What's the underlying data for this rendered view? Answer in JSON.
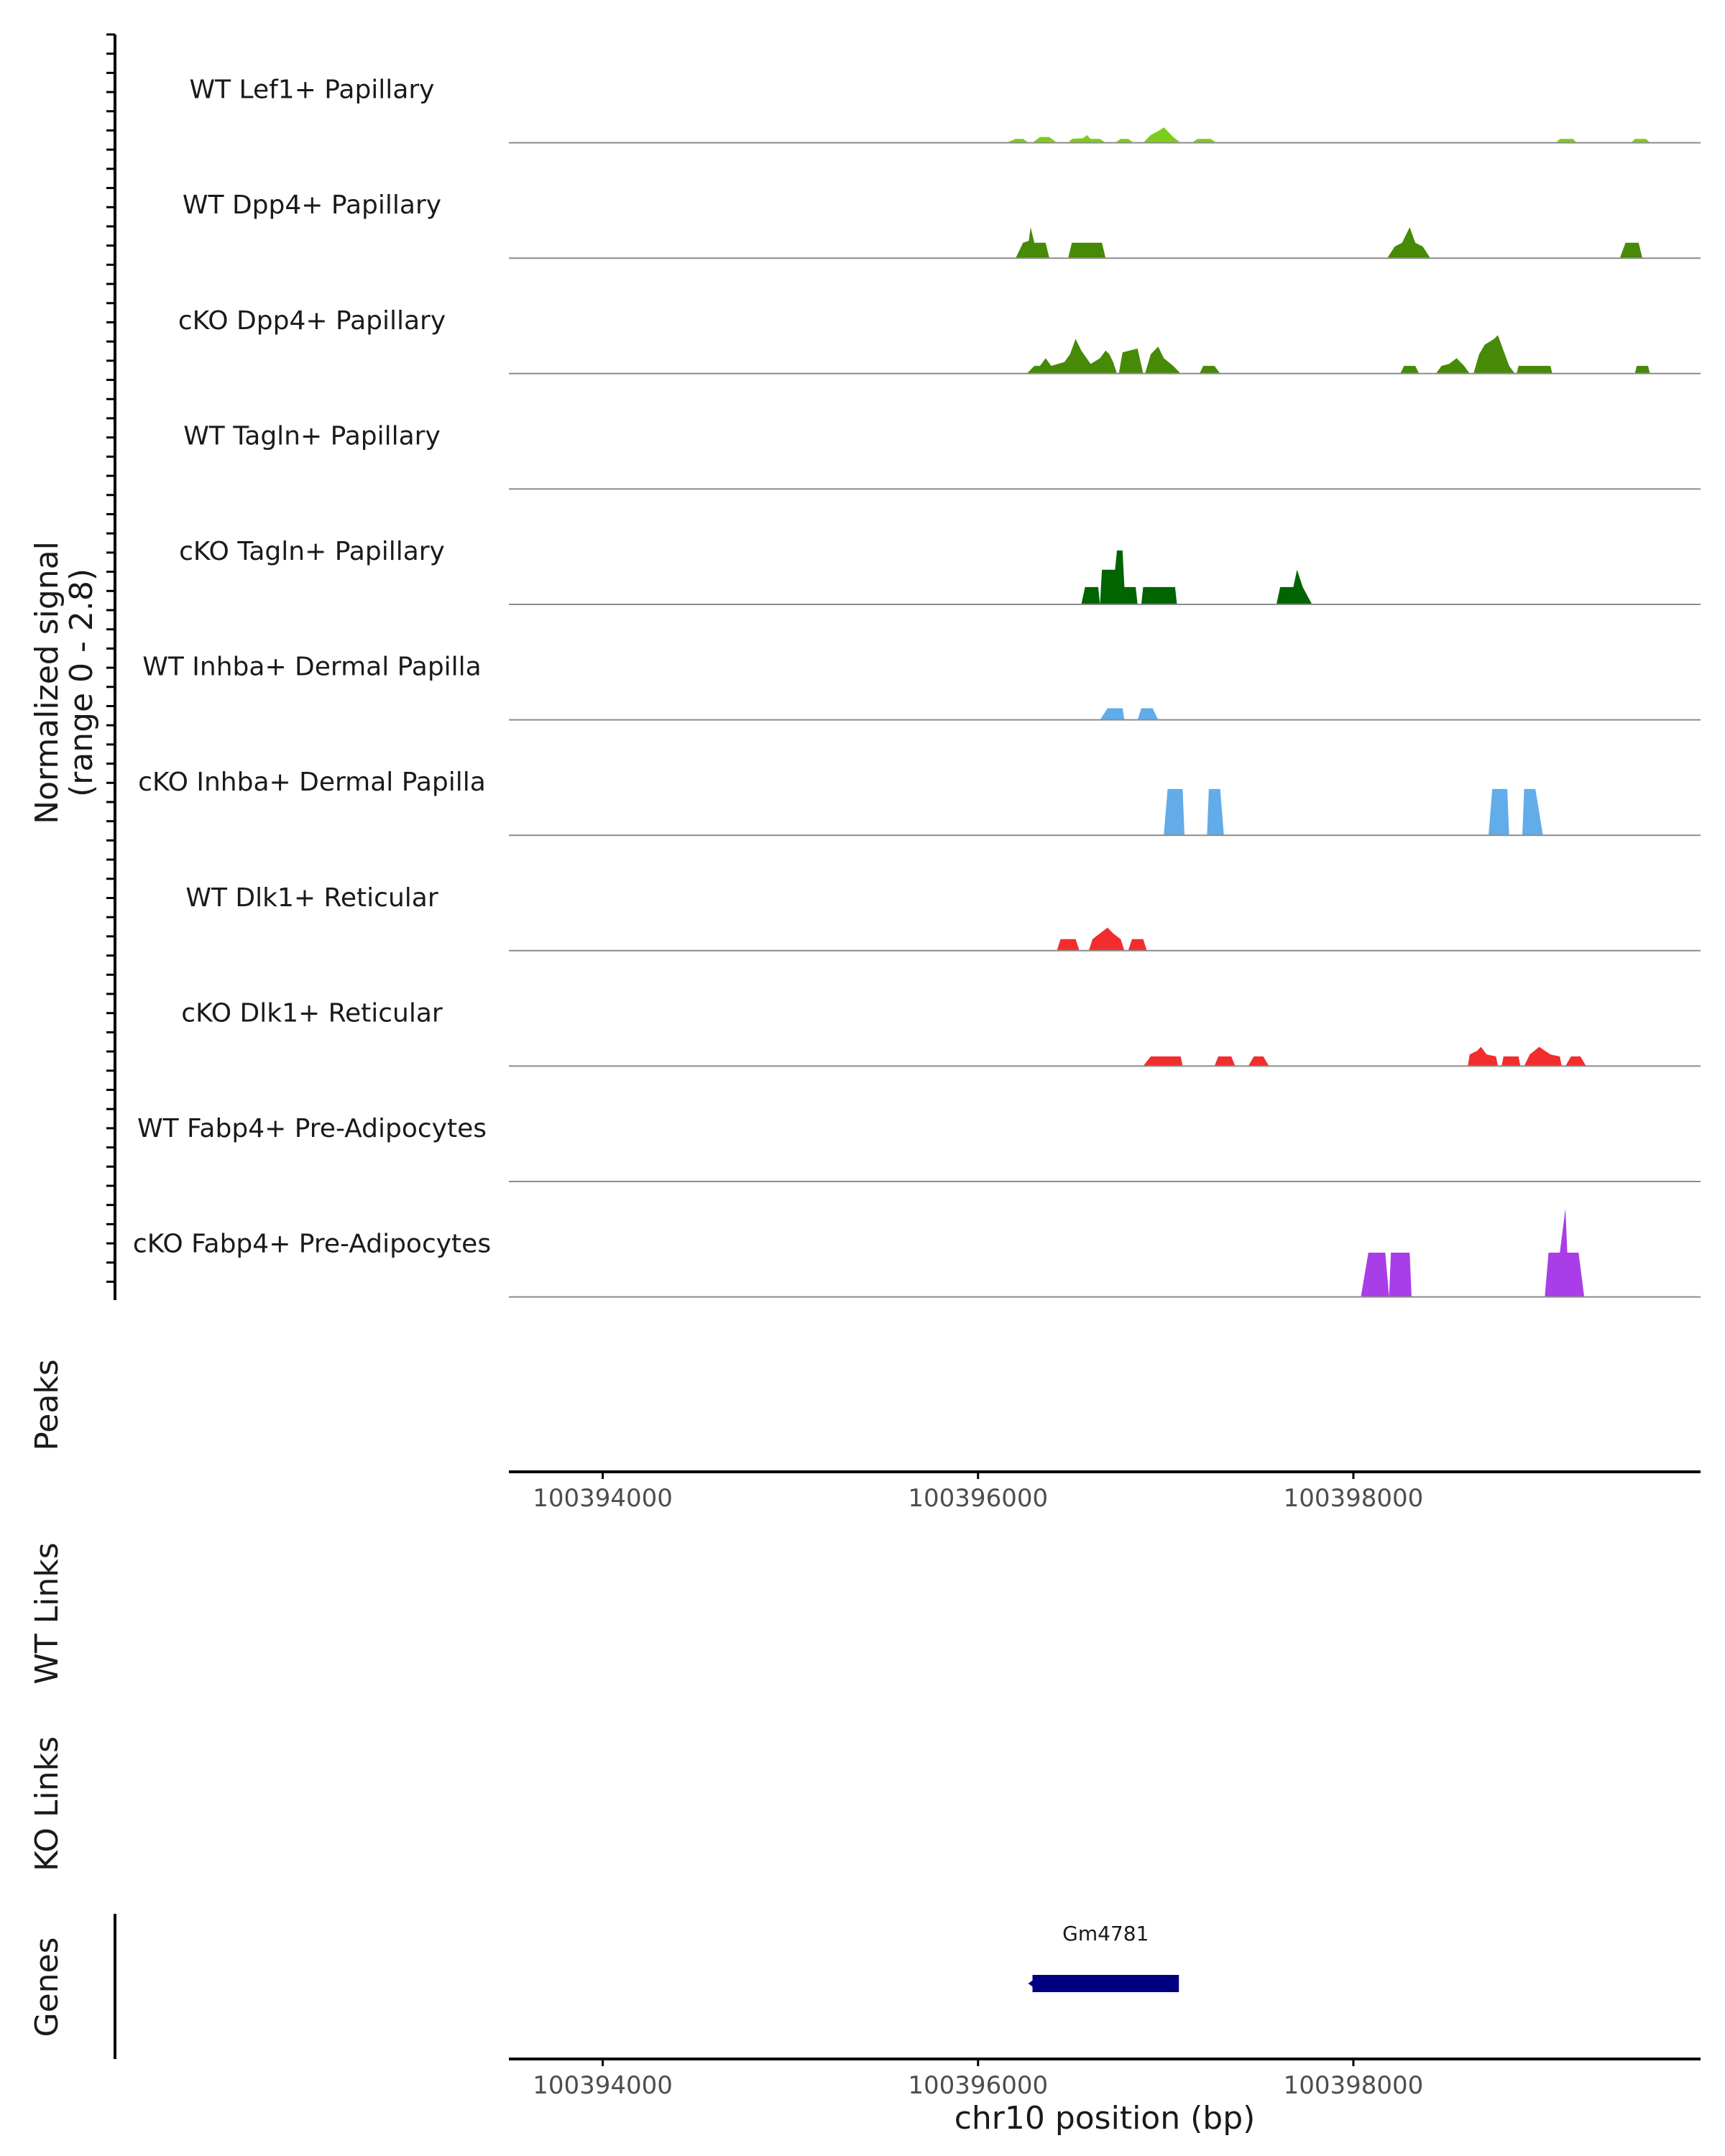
{
  "chart_data": {
    "type": "area",
    "title": "",
    "xlabel": "chr10 position (bp)",
    "xlim": [
      100393500,
      100399850
    ],
    "xticks": [
      100394000,
      100396000,
      100398000
    ],
    "xtick_labels": [
      "100394000",
      "100396000",
      "100398000"
    ],
    "ylabel_line1": "Normalized signal",
    "ylabel_line2": "(range 0 - 2.8)",
    "ylim": [
      0,
      2.8
    ],
    "side_labels": {
      "peaks": "Peaks",
      "wt_links": "WT Links",
      "ko_links": "KO Links",
      "genes": "Genes"
    },
    "colors": {
      "lef1": "#7ccd1b",
      "dpp4": "#468a08",
      "tagln": "#006400",
      "inhba": "#62acea",
      "dlk1": "#f22d2d",
      "fabp4": "#a93de8",
      "gene": "#000080",
      "baseline": "#8c8c8c",
      "axis": "#000000"
    },
    "series": [
      {
        "name": "WT Lef1+ Papillary",
        "color_key": "lef1",
        "segments": [
          [
            [
              100396150,
              0
            ],
            [
              100396200,
              0.1
            ],
            [
              100396240,
              0.1
            ],
            [
              100396270,
              0
            ]
          ],
          [
            [
              100396290,
              0
            ],
            [
              100396330,
              0.15
            ],
            [
              100396380,
              0.15
            ],
            [
              100396420,
              0
            ]
          ],
          [
            [
              100396480,
              0
            ],
            [
              100396500,
              0.1
            ],
            [
              100396560,
              0.12
            ],
            [
              100396580,
              0.2
            ],
            [
              100396600,
              0.1
            ],
            [
              100396650,
              0.1
            ],
            [
              100396680,
              0
            ]
          ],
          [
            [
              100396730,
              0
            ],
            [
              100396760,
              0.1
            ],
            [
              100396800,
              0.1
            ],
            [
              100396830,
              0
            ]
          ],
          [
            [
              100396880,
              0
            ],
            [
              100396920,
              0.2
            ],
            [
              100396960,
              0.3
            ],
            [
              100396990,
              0.4
            ],
            [
              100397010,
              0.3
            ],
            [
              100397040,
              0.15
            ],
            [
              100397080,
              0
            ]
          ],
          [
            [
              100397140,
              0
            ],
            [
              100397170,
              0.1
            ],
            [
              100397240,
              0.1
            ],
            [
              100397270,
              0
            ]
          ],
          [
            [
              100399080,
              0
            ],
            [
              100399100,
              0.1
            ],
            [
              100399170,
              0.1
            ],
            [
              100399190,
              0
            ]
          ],
          [
            [
              100399480,
              0
            ],
            [
              100399500,
              0.1
            ],
            [
              100399560,
              0.1
            ],
            [
              100399580,
              0
            ]
          ]
        ]
      },
      {
        "name": "WT Dpp4+ Papillary",
        "color_key": "dpp4",
        "segments": [
          [
            [
              100396200,
              0
            ],
            [
              100396240,
              0.4
            ],
            [
              100396270,
              0.45
            ],
            [
              100396280,
              0.8
            ],
            [
              100396300,
              0.4
            ],
            [
              100396360,
              0.4
            ],
            [
              100396380,
              0
            ]
          ],
          [
            [
              100396480,
              0
            ],
            [
              100396500,
              0.4
            ],
            [
              100396660,
              0.4
            ],
            [
              100396680,
              0
            ]
          ],
          [
            [
              100398180,
              0
            ],
            [
              100398220,
              0.3
            ],
            [
              100398260,
              0.4
            ],
            [
              100398300,
              0.8
            ],
            [
              100398330,
              0.4
            ],
            [
              100398370,
              0.3
            ],
            [
              100398410,
              0
            ]
          ],
          [
            [
              100399420,
              0
            ],
            [
              100399450,
              0.4
            ],
            [
              100399520,
              0.4
            ],
            [
              100399540,
              0
            ]
          ]
        ]
      },
      {
        "name": "cKO Dpp4+ Papillary",
        "color_key": "dpp4",
        "segments": [
          [
            [
              100396260,
              0
            ],
            [
              100396300,
              0.2
            ],
            [
              100396330,
              0.2
            ],
            [
              100396360,
              0.4
            ],
            [
              100396390,
              0.2
            ],
            [
              100396460,
              0.3
            ],
            [
              100396490,
              0.5
            ],
            [
              100396520,
              0.9
            ],
            [
              100396550,
              0.6
            ],
            [
              100396600,
              0.25
            ],
            [
              100396650,
              0.4
            ],
            [
              100396680,
              0.6
            ],
            [
              100396700,
              0.5
            ],
            [
              100396720,
              0.3
            ],
            [
              100396740,
              0
            ]
          ],
          [
            [
              100396750,
              0
            ],
            [
              100396770,
              0.55
            ],
            [
              100396850,
              0.65
            ],
            [
              100396880,
              0
            ]
          ],
          [
            [
              100396890,
              0
            ],
            [
              100396920,
              0.5
            ],
            [
              100396960,
              0.7
            ],
            [
              100396990,
              0.4
            ],
            [
              100397040,
              0.2
            ],
            [
              100397080,
              0
            ]
          ],
          [
            [
              100397180,
              0
            ],
            [
              100397200,
              0.2
            ],
            [
              100397260,
              0.2
            ],
            [
              100397290,
              0
            ]
          ],
          [
            [
              100398250,
              0
            ],
            [
              100398270,
              0.2
            ],
            [
              100398330,
              0.2
            ],
            [
              100398350,
              0
            ]
          ],
          [
            [
              100398440,
              0
            ],
            [
              100398470,
              0.2
            ],
            [
              100398510,
              0.25
            ],
            [
              100398550,
              0.4
            ],
            [
              100398590,
              0.2
            ],
            [
              100398620,
              0
            ]
          ],
          [
            [
              100398640,
              0
            ],
            [
              100398670,
              0.5
            ],
            [
              100398700,
              0.75
            ],
            [
              100398750,
              0.9
            ],
            [
              100398770,
              1.0
            ],
            [
              100398800,
              0.6
            ],
            [
              100398830,
              0.2
            ],
            [
              100398860,
              0
            ]
          ],
          [
            [
              100398870,
              0
            ],
            [
              100398880,
              0.2
            ],
            [
              100399050,
              0.2
            ],
            [
              100399060,
              0
            ]
          ],
          [
            [
              100399500,
              0
            ],
            [
              100399510,
              0.2
            ],
            [
              100399570,
              0.2
            ],
            [
              100399580,
              0
            ]
          ]
        ]
      },
      {
        "name": "WT Tagln+ Papillary",
        "color_key": "tagln",
        "segments": []
      },
      {
        "name": "cKO Tagln+ Papillary",
        "color_key": "tagln",
        "segments": [
          [
            [
              100396550,
              0
            ],
            [
              100396570,
              0.45
            ],
            [
              100396640,
              0.45
            ],
            [
              100396650,
              0
            ]
          ],
          [
            [
              100396650,
              0
            ],
            [
              100396660,
              0.9
            ],
            [
              100396730,
              0.9
            ],
            [
              100396740,
              1.4
            ],
            [
              100396770,
              1.4
            ],
            [
              100396780,
              0.45
            ],
            [
              100396840,
              0.45
            ],
            [
              100396850,
              0
            ]
          ],
          [
            [
              100396870,
              0
            ],
            [
              100396880,
              0.45
            ],
            [
              100397050,
              0.45
            ],
            [
              100397060,
              0
            ]
          ],
          [
            [
              100397590,
              0
            ],
            [
              100397610,
              0.45
            ],
            [
              100397680,
              0.45
            ],
            [
              100397700,
              0.9
            ],
            [
              100397730,
              0.45
            ],
            [
              100397780,
              0
            ]
          ]
        ]
      },
      {
        "name": "WT Inhba+ Dermal Papilla",
        "color_key": "inhba",
        "segments": [
          [
            [
              100396650,
              0
            ],
            [
              100396690,
              0.3
            ],
            [
              100396770,
              0.3
            ],
            [
              100396780,
              0
            ]
          ],
          [
            [
              100396850,
              0
            ],
            [
              100396870,
              0.3
            ],
            [
              100396930,
              0.3
            ],
            [
              100396960,
              0
            ]
          ]
        ]
      },
      {
        "name": "cKO Inhba+ Dermal Papilla",
        "color_key": "inhba",
        "segments": [
          [
            [
              100396990,
              0
            ],
            [
              100397010,
              1.2
            ],
            [
              100397090,
              1.2
            ],
            [
              100397100,
              0
            ]
          ],
          [
            [
              100397220,
              0
            ],
            [
              100397230,
              1.2
            ],
            [
              100397290,
              1.2
            ],
            [
              100397310,
              0
            ]
          ],
          [
            [
              100398720,
              0
            ],
            [
              100398740,
              1.2
            ],
            [
              100398820,
              1.2
            ],
            [
              100398830,
              0
            ]
          ],
          [
            [
              100398900,
              0
            ],
            [
              100398910,
              1.2
            ],
            [
              100398970,
              1.2
            ],
            [
              100399010,
              0
            ]
          ]
        ]
      },
      {
        "name": "WT Dlk1+ Reticular",
        "color_key": "dlk1",
        "segments": [
          [
            [
              100396420,
              0
            ],
            [
              100396440,
              0.3
            ],
            [
              100396520,
              0.3
            ],
            [
              100396540,
              0
            ]
          ],
          [
            [
              100396590,
              0
            ],
            [
              100396610,
              0.3
            ],
            [
              100396650,
              0.45
            ],
            [
              100396690,
              0.6
            ],
            [
              100396720,
              0.45
            ],
            [
              100396760,
              0.3
            ],
            [
              100396780,
              0
            ]
          ],
          [
            [
              100396800,
              0
            ],
            [
              100396820,
              0.3
            ],
            [
              100396880,
              0.3
            ],
            [
              100396900,
              0
            ]
          ]
        ]
      },
      {
        "name": "cKO Dlk1+ Reticular",
        "color_key": "dlk1",
        "segments": [
          [
            [
              100396880,
              0
            ],
            [
              100396920,
              0.25
            ],
            [
              100397080,
              0.25
            ],
            [
              100397090,
              0
            ]
          ],
          [
            [
              100397260,
              0
            ],
            [
              100397280,
              0.25
            ],
            [
              100397350,
              0.25
            ],
            [
              100397370,
              0
            ]
          ],
          [
            [
              100397440,
              0
            ],
            [
              100397470,
              0.25
            ],
            [
              100397520,
              0.25
            ],
            [
              100397550,
              0
            ]
          ],
          [
            [
              100398610,
              0
            ],
            [
              100398620,
              0.3
            ],
            [
              100398660,
              0.4
            ],
            [
              100398680,
              0.5
            ],
            [
              100398710,
              0.3
            ],
            [
              100398760,
              0.25
            ],
            [
              100398770,
              0
            ]
          ],
          [
            [
              100398790,
              0
            ],
            [
              100398800,
              0.25
            ],
            [
              100398880,
              0.25
            ],
            [
              100398890,
              0
            ]
          ],
          [
            [
              100398910,
              0
            ],
            [
              100398940,
              0.3
            ],
            [
              100398990,
              0.5
            ],
            [
              100399050,
              0.3
            ],
            [
              100399100,
              0.25
            ],
            [
              100399110,
              0
            ]
          ],
          [
            [
              100399130,
              0
            ],
            [
              100399160,
              0.25
            ],
            [
              100399210,
              0.25
            ],
            [
              100399240,
              0
            ]
          ]
        ]
      },
      {
        "name": "WT Fabp4+ Pre-Adipocytes",
        "color_key": "fabp4",
        "segments": []
      },
      {
        "name": "cKO Fabp4+ Pre-Adipocytes",
        "color_key": "fabp4",
        "segments": [
          [
            [
              100398040,
              0
            ],
            [
              100398080,
              1.15
            ],
            [
              100398170,
              1.15
            ],
            [
              100398190,
              0
            ]
          ],
          [
            [
              100398190,
              0
            ],
            [
              100398200,
              1.15
            ],
            [
              100398300,
              1.15
            ],
            [
              100398310,
              0
            ]
          ],
          [
            [
              100399020,
              0
            ],
            [
              100399040,
              1.15
            ],
            [
              100399100,
              1.15
            ],
            [
              100399130,
              2.3
            ],
            [
              100399140,
              1.15
            ],
            [
              100399200,
              1.15
            ],
            [
              100399230,
              0
            ]
          ]
        ]
      }
    ],
    "genes": [
      {
        "name": "Gm4781",
        "start": 100396290,
        "end": 100397070,
        "strand": "-"
      }
    ]
  }
}
